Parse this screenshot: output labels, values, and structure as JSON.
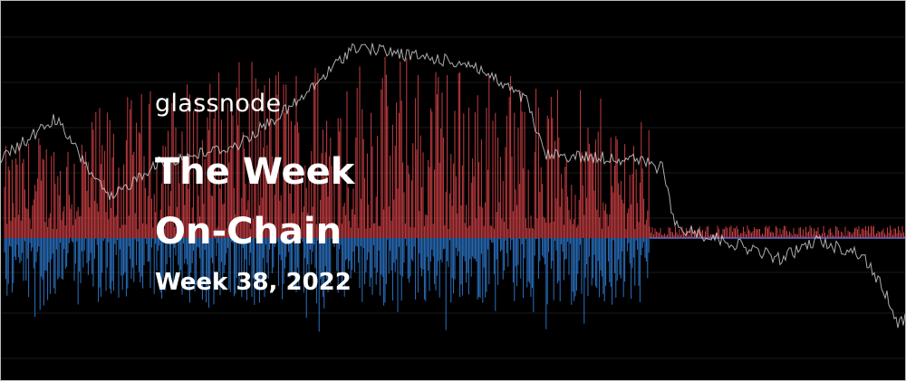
{
  "brand": "glassnode",
  "title_lines": [
    "The Week",
    "On-Chain"
  ],
  "subtitle": "Week 38, 2022"
}
